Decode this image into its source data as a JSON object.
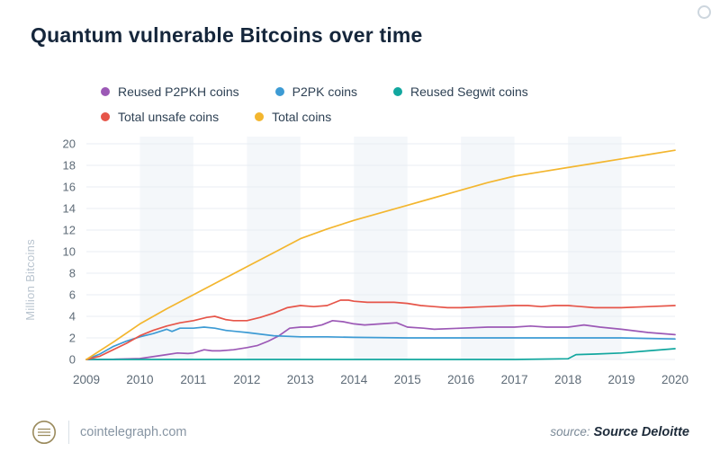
{
  "header": {
    "title": "Quantum vulnerable Bitcoins over time"
  },
  "footer": {
    "site": "cointelegraph.com",
    "source_label": "source:",
    "source_value": "Source Deloitte",
    "logo_icon": "coin-stack-icon"
  },
  "chart_data": {
    "type": "line",
    "title": "Quantum vulnerable Bitcoins over time",
    "xlabel": "",
    "ylabel": "Million Bitcoins",
    "xlim": [
      2009,
      2020
    ],
    "ylim": [
      0,
      20
    ],
    "xticks": [
      2009,
      2010,
      2011,
      2012,
      2013,
      2014,
      2015,
      2016,
      2017,
      2018,
      2019,
      2020
    ],
    "yticks": [
      0,
      2,
      4,
      6,
      8,
      10,
      12,
      14,
      16,
      18,
      20
    ],
    "grid": "horizontal",
    "legend_position": "top-left",
    "stripe_color": "#f4f7fa",
    "grid_color": "#e9eef3",
    "tick_color": "#5e6b77",
    "series": [
      {
        "name": "Reused P2PKH coins",
        "color": "#9c59b6",
        "points": [
          [
            2009,
            0
          ],
          [
            2009.5,
            0.02
          ],
          [
            2010,
            0.08
          ],
          [
            2010.3,
            0.3
          ],
          [
            2010.5,
            0.45
          ],
          [
            2010.7,
            0.6
          ],
          [
            2010.9,
            0.55
          ],
          [
            2011,
            0.6
          ],
          [
            2011.2,
            0.9
          ],
          [
            2011.35,
            0.8
          ],
          [
            2011.5,
            0.8
          ],
          [
            2011.75,
            0.9
          ],
          [
            2012,
            1.1
          ],
          [
            2012.2,
            1.3
          ],
          [
            2012.4,
            1.7
          ],
          [
            2012.6,
            2.2
          ],
          [
            2012.8,
            2.9
          ],
          [
            2013,
            3.0
          ],
          [
            2013.2,
            3.0
          ],
          [
            2013.4,
            3.2
          ],
          [
            2013.6,
            3.6
          ],
          [
            2013.8,
            3.5
          ],
          [
            2014,
            3.3
          ],
          [
            2014.2,
            3.2
          ],
          [
            2014.5,
            3.3
          ],
          [
            2014.8,
            3.4
          ],
          [
            2015,
            3.0
          ],
          [
            2015.3,
            2.9
          ],
          [
            2015.5,
            2.8
          ],
          [
            2016,
            2.9
          ],
          [
            2016.5,
            3.0
          ],
          [
            2017,
            3.0
          ],
          [
            2017.3,
            3.1
          ],
          [
            2017.6,
            3.0
          ],
          [
            2018,
            3.0
          ],
          [
            2018.3,
            3.2
          ],
          [
            2018.6,
            3.0
          ],
          [
            2019,
            2.8
          ],
          [
            2019.5,
            2.5
          ],
          [
            2020,
            2.3
          ]
        ]
      },
      {
        "name": "P2PK coins",
        "color": "#3d9bd4",
        "points": [
          [
            2009,
            0
          ],
          [
            2009.25,
            0.5
          ],
          [
            2009.5,
            1.2
          ],
          [
            2009.75,
            1.7
          ],
          [
            2010,
            2.1
          ],
          [
            2010.25,
            2.4
          ],
          [
            2010.5,
            2.8
          ],
          [
            2010.6,
            2.6
          ],
          [
            2010.75,
            2.9
          ],
          [
            2011,
            2.9
          ],
          [
            2011.2,
            3.0
          ],
          [
            2011.4,
            2.9
          ],
          [
            2011.6,
            2.7
          ],
          [
            2011.8,
            2.6
          ],
          [
            2012,
            2.5
          ],
          [
            2012.5,
            2.2
          ],
          [
            2013,
            2.1
          ],
          [
            2013.5,
            2.1
          ],
          [
            2014,
            2.05
          ],
          [
            2015,
            2.0
          ],
          [
            2016,
            2.0
          ],
          [
            2017,
            2.0
          ],
          [
            2018,
            2.0
          ],
          [
            2019,
            2.0
          ],
          [
            2019.5,
            1.95
          ],
          [
            2020,
            1.9
          ]
        ]
      },
      {
        "name": "Reused Segwit coins",
        "color": "#12a79f",
        "points": [
          [
            2009,
            0
          ],
          [
            2016,
            0
          ],
          [
            2017,
            0
          ],
          [
            2017.5,
            0.03
          ],
          [
            2018,
            0.07
          ],
          [
            2018.15,
            0.45
          ],
          [
            2018.5,
            0.5
          ],
          [
            2019,
            0.6
          ],
          [
            2019.5,
            0.8
          ],
          [
            2020,
            1.0
          ]
        ]
      },
      {
        "name": "Total unsafe coins",
        "color": "#e65549",
        "points": [
          [
            2009,
            0
          ],
          [
            2009.25,
            0.3
          ],
          [
            2009.5,
            0.9
          ],
          [
            2009.75,
            1.5
          ],
          [
            2010,
            2.2
          ],
          [
            2010.25,
            2.7
          ],
          [
            2010.5,
            3.1
          ],
          [
            2010.75,
            3.4
          ],
          [
            2011,
            3.6
          ],
          [
            2011.25,
            3.9
          ],
          [
            2011.4,
            4.0
          ],
          [
            2011.6,
            3.7
          ],
          [
            2011.75,
            3.6
          ],
          [
            2012,
            3.6
          ],
          [
            2012.25,
            3.9
          ],
          [
            2012.5,
            4.3
          ],
          [
            2012.75,
            4.8
          ],
          [
            2013,
            5.0
          ],
          [
            2013.25,
            4.9
          ],
          [
            2013.5,
            5.0
          ],
          [
            2013.75,
            5.5
          ],
          [
            2013.9,
            5.5
          ],
          [
            2014,
            5.4
          ],
          [
            2014.25,
            5.3
          ],
          [
            2014.5,
            5.3
          ],
          [
            2014.75,
            5.3
          ],
          [
            2015,
            5.2
          ],
          [
            2015.25,
            5.0
          ],
          [
            2015.5,
            4.9
          ],
          [
            2015.75,
            4.8
          ],
          [
            2016,
            4.8
          ],
          [
            2016.5,
            4.9
          ],
          [
            2017,
            5.0
          ],
          [
            2017.25,
            5.0
          ],
          [
            2017.5,
            4.9
          ],
          [
            2017.75,
            5.0
          ],
          [
            2018,
            5.0
          ],
          [
            2018.25,
            4.9
          ],
          [
            2018.5,
            4.8
          ],
          [
            2019,
            4.8
          ],
          [
            2019.5,
            4.9
          ],
          [
            2020,
            5.0
          ]
        ]
      },
      {
        "name": "Total coins",
        "color": "#f3b62f",
        "points": [
          [
            2009,
            0
          ],
          [
            2009.5,
            1.6
          ],
          [
            2010,
            3.3
          ],
          [
            2010.5,
            4.7
          ],
          [
            2011,
            6.0
          ],
          [
            2011.5,
            7.3
          ],
          [
            2012,
            8.6
          ],
          [
            2012.5,
            9.9
          ],
          [
            2013,
            11.2
          ],
          [
            2013.5,
            12.1
          ],
          [
            2014,
            12.9
          ],
          [
            2014.5,
            13.6
          ],
          [
            2015,
            14.3
          ],
          [
            2015.5,
            15.0
          ],
          [
            2016,
            15.7
          ],
          [
            2016.5,
            16.4
          ],
          [
            2017,
            17.0
          ],
          [
            2017.5,
            17.4
          ],
          [
            2018,
            17.8
          ],
          [
            2018.5,
            18.2
          ],
          [
            2019,
            18.6
          ],
          [
            2019.5,
            19.0
          ],
          [
            2020,
            19.4
          ]
        ]
      }
    ]
  }
}
